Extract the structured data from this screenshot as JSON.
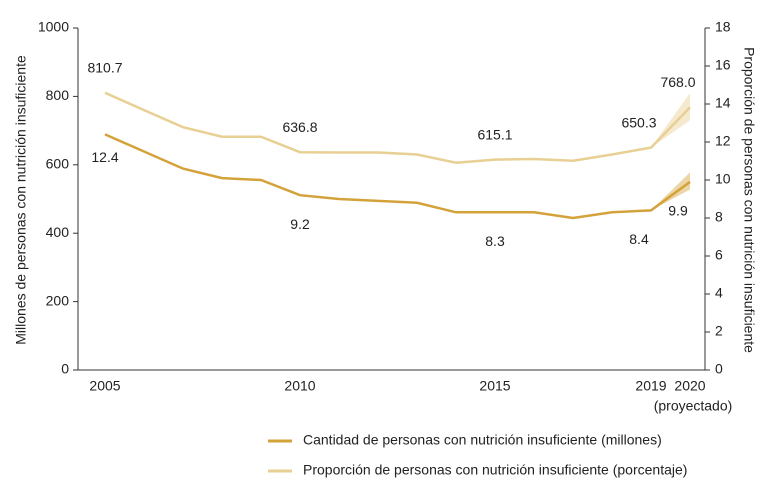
{
  "chart_data": {
    "type": "line",
    "y_label": "Millones de personas con nutrición insuficiente",
    "y2_label": "Proporción de personas con nutrición insuficiente",
    "x_note": "(proyectado)",
    "categories": [
      "2005",
      null,
      null,
      null,
      null,
      "2010",
      null,
      null,
      null,
      null,
      "2015",
      null,
      null,
      null,
      "2019",
      "2020"
    ],
    "ylim": [
      0,
      1000
    ],
    "yticks": [
      0,
      200,
      400,
      600,
      800,
      1000
    ],
    "y2lim": [
      0,
      18
    ],
    "y2ticks": [
      0,
      2,
      4,
      6,
      8,
      10,
      12,
      14,
      16,
      18
    ],
    "series": [
      {
        "name": "Cantidad de personas con nutrición insuficiente (millones)",
        "color": "#d4a23a",
        "axis": "y2",
        "values": [
          12.4,
          11.5,
          10.6,
          10.1,
          10.0,
          9.2,
          9.0,
          8.9,
          8.8,
          8.3,
          8.3,
          8.3,
          8.0,
          8.3,
          8.4,
          9.9
        ],
        "value_labels": [
          "12.4",
          null,
          null,
          null,
          null,
          "9.2",
          null,
          null,
          null,
          null,
          "8.3",
          null,
          null,
          null,
          "8.4",
          "9.9"
        ],
        "projection_range": [
          9.5,
          10.4
        ]
      },
      {
        "name": "Proporción de personas con nutrición insuficiente (porcentaje)",
        "color": "#e8cf94",
        "values": [
          810.7,
          760,
          710,
          682,
          682,
          636.8,
          636,
          636,
          630,
          606,
          615.1,
          617,
          612,
          630,
          650.3,
          768.0
        ],
        "value_labels": [
          "810.7",
          null,
          null,
          null,
          null,
          "636.8",
          null,
          null,
          null,
          null,
          "615.1",
          null,
          null,
          null,
          "650.3",
          "768.0"
        ],
        "projection_range": [
          730,
          810
        ]
      }
    ]
  }
}
